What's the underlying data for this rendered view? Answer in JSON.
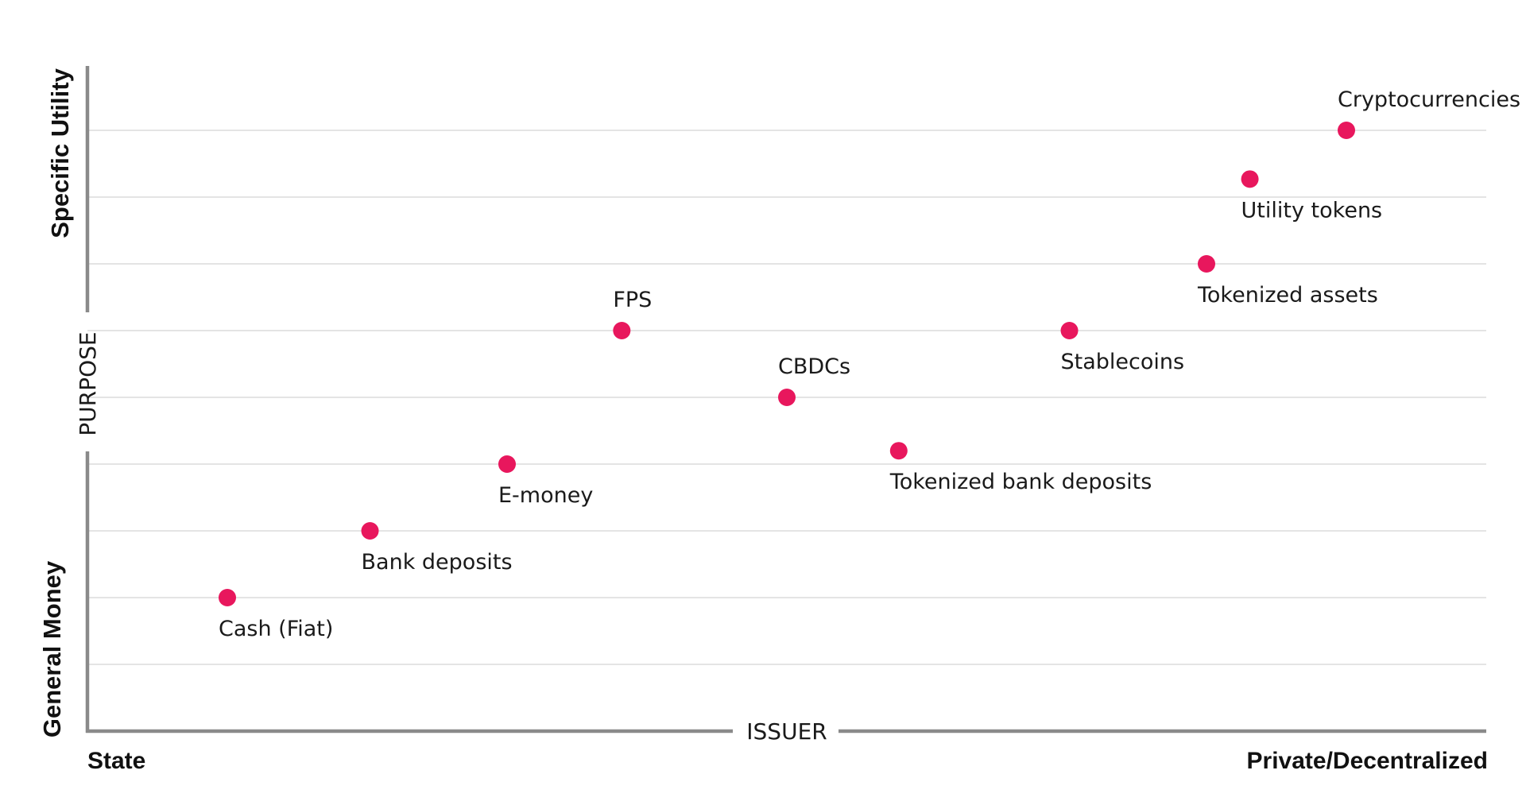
{
  "chart_data": {
    "type": "scatter",
    "xlabel": "ISSUER",
    "ylabel": "PURPOSE",
    "x_poles": {
      "left": "State",
      "right": "Private/Decentralized"
    },
    "y_poles": {
      "bottom": "General Money",
      "top": "Specific Utility"
    },
    "xlim": [
      0,
      100
    ],
    "ylim": [
      0,
      10
    ],
    "grid": true,
    "point_color": "#e8175d",
    "axis_color": "#8a8a8a",
    "grid_color": "#dcdcdc",
    "points": [
      {
        "label": "Cash (Fiat)",
        "x": 10,
        "y": 2,
        "label_pos": "below"
      },
      {
        "label": "Bank deposits",
        "x": 20.2,
        "y": 3,
        "label_pos": "below"
      },
      {
        "label": "E-money",
        "x": 30,
        "y": 4,
        "label_pos": "below"
      },
      {
        "label": "FPS",
        "x": 38.2,
        "y": 6,
        "label_pos": "above"
      },
      {
        "label": "CBDCs",
        "x": 50,
        "y": 5,
        "label_pos": "above"
      },
      {
        "label": "Tokenized bank deposits",
        "x": 58,
        "y": 4.2,
        "label_pos": "below"
      },
      {
        "label": "Stablecoins",
        "x": 70.2,
        "y": 6,
        "label_pos": "below"
      },
      {
        "label": "Tokenized assets",
        "x": 80,
        "y": 7,
        "label_pos": "below"
      },
      {
        "label": "Utility tokens",
        "x": 83.1,
        "y": 8.27,
        "label_pos": "below"
      },
      {
        "label": "Cryptocurrencies",
        "x": 90,
        "y": 9,
        "label_pos": "above"
      }
    ]
  }
}
